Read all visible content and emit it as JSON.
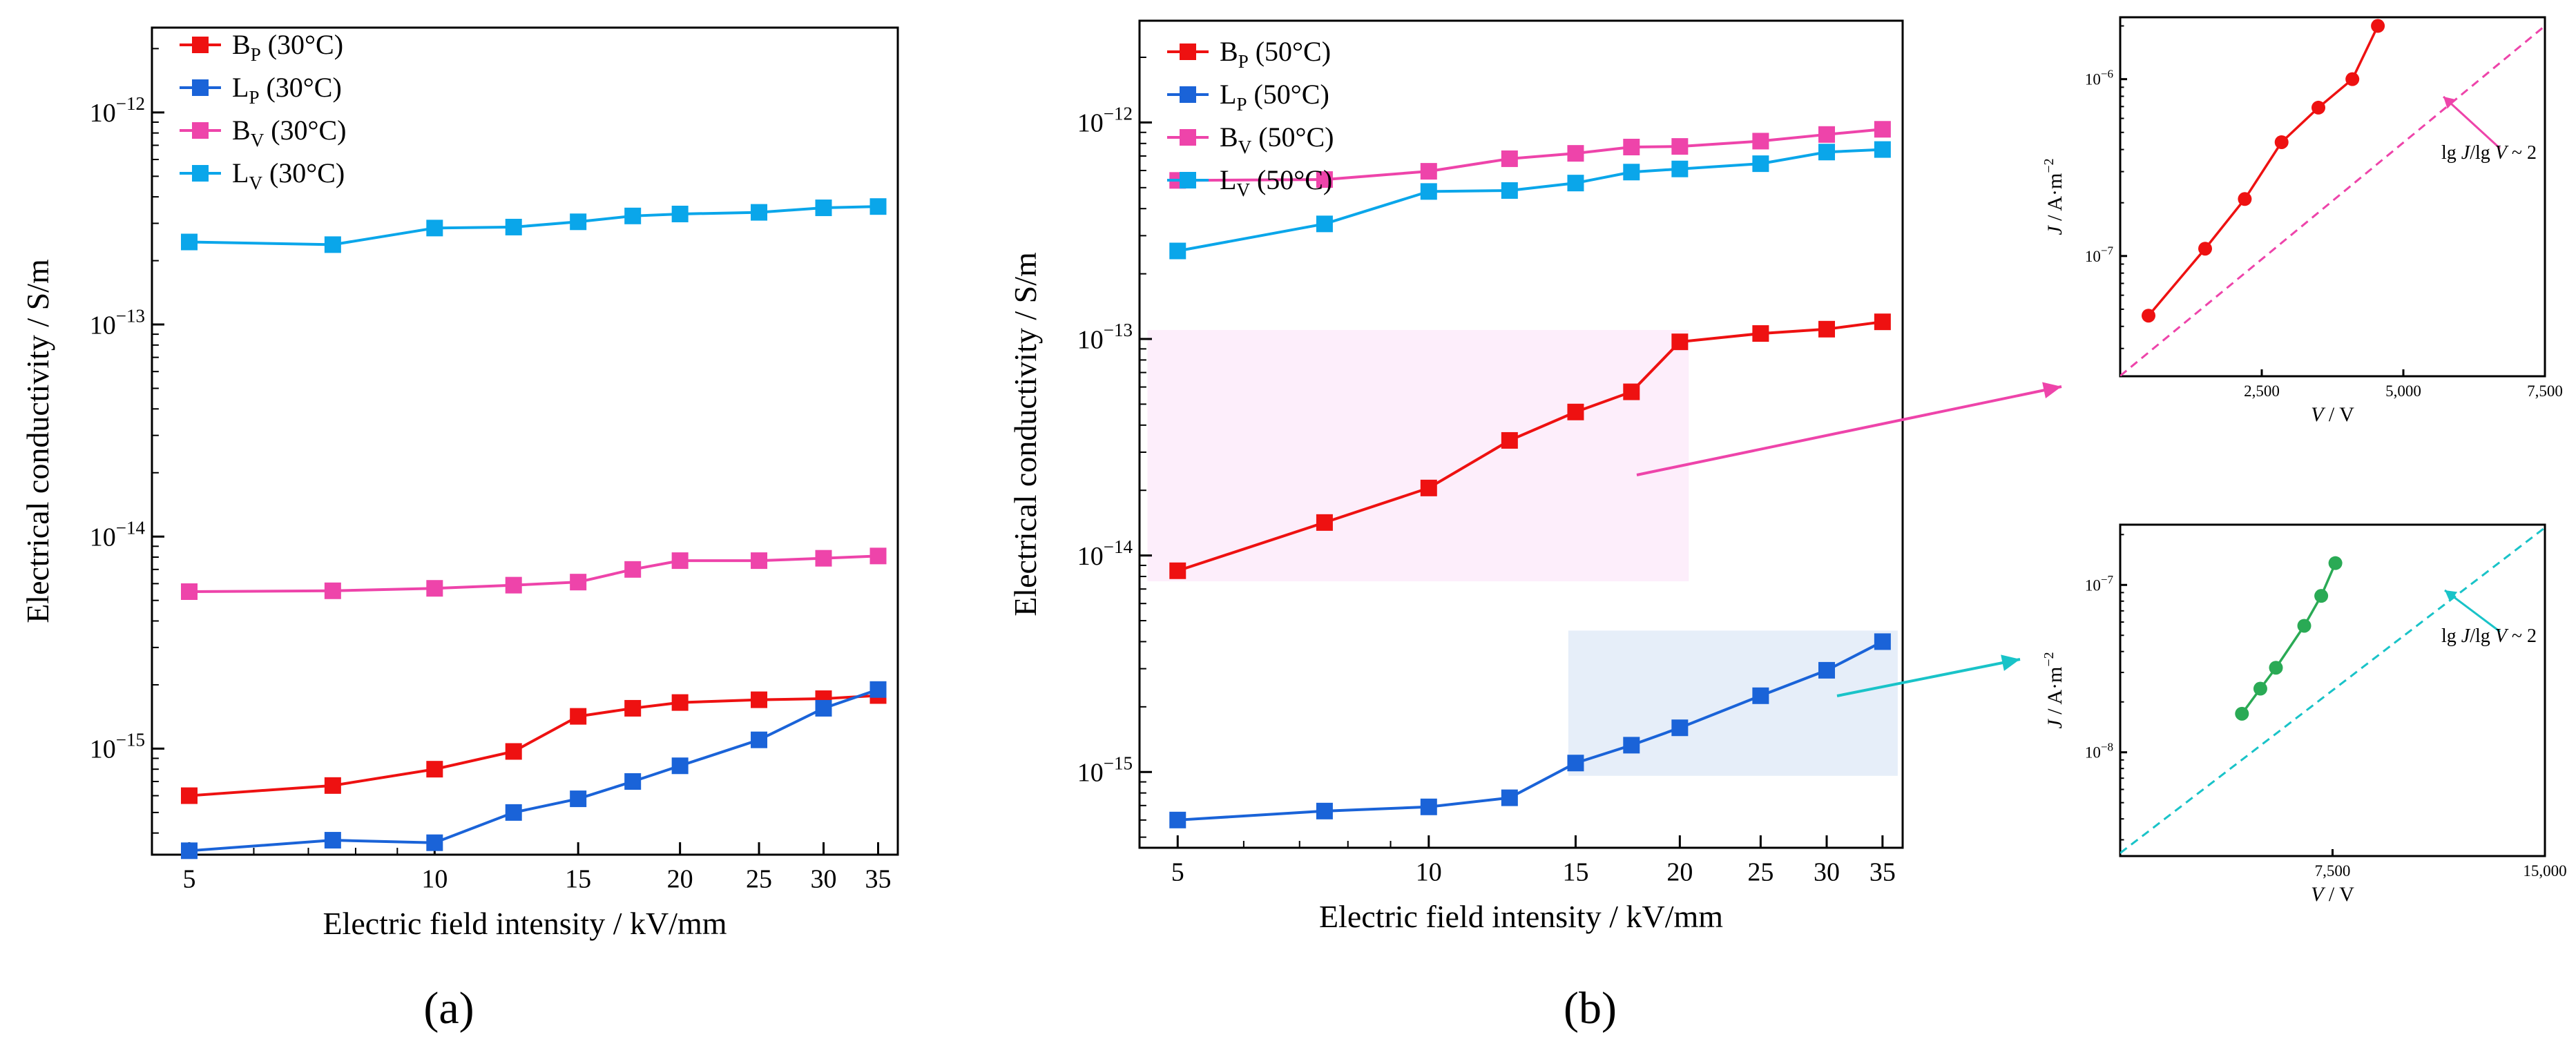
{
  "colors": {
    "red": "#ee1111",
    "blue": "#1a63d8",
    "pink": "#ee44aa",
    "cyan": "#0aa6ea",
    "green": "#2aaa55",
    "teal": "#19c3c8",
    "highlight_pink": "#fdeefb",
    "highlight_blue": "#e6eef9"
  },
  "chart_data": [
    {
      "id": "a",
      "panel_label": "(a)",
      "type": "line",
      "xscale": "log",
      "yscale": "log",
      "xlabel": "Electric field intensity / kV/mm",
      "ylabel": "Electrical conductivity / S/m",
      "xlim": [
        4.5,
        37
      ],
      "ylim_exp": [
        -15.5,
        -11.6
      ],
      "x_ticks": [
        5,
        10,
        15,
        20,
        25,
        30,
        35
      ],
      "x_tick_labels": [
        "5",
        "10",
        "15",
        "20",
        "25",
        "30",
        "35"
      ],
      "y_ticks": [
        {
          "exp": -15,
          "base": "10",
          "power": "−15"
        },
        {
          "exp": -14,
          "base": "10",
          "power": "−14"
        },
        {
          "exp": -13,
          "base": "10",
          "power": "−13"
        },
        {
          "exp": -12,
          "base": "10",
          "power": "−12"
        }
      ],
      "legend_position": "top-left",
      "x": [
        5,
        7.5,
        10,
        12.5,
        15,
        17.5,
        20,
        25,
        30,
        35
      ],
      "series": [
        {
          "name": "B",
          "sub": "P",
          "suffix": " (30°C)",
          "color": "red",
          "values": [
            6e-16,
            6.7e-16,
            8e-16,
            9.7e-16,
            1.42e-15,
            1.55e-15,
            1.65e-15,
            1.7e-15,
            1.72e-15,
            1.78e-15
          ]
        },
        {
          "name": "L",
          "sub": "P",
          "suffix": " (30°C)",
          "color": "blue",
          "values": [
            3.3e-16,
            3.7e-16,
            3.6e-16,
            5e-16,
            5.8e-16,
            7e-16,
            8.3e-16,
            1.1e-15,
            1.55e-15,
            1.9e-15
          ]
        },
        {
          "name": "B",
          "sub": "V",
          "suffix": " (30°C)",
          "color": "pink",
          "values": [
            5.5e-15,
            5.55e-15,
            5.7e-15,
            5.9e-15,
            6.1e-15,
            7e-15,
            7.7e-15,
            7.7e-15,
            7.9e-15,
            8.1e-15
          ]
        },
        {
          "name": "L",
          "sub": "V",
          "suffix": " (30°C)",
          "color": "cyan",
          "values": [
            2.45e-13,
            2.38e-13,
            2.85e-13,
            2.88e-13,
            3.05e-13,
            3.25e-13,
            3.32e-13,
            3.38e-13,
            3.55e-13,
            3.6e-13
          ]
        }
      ]
    },
    {
      "id": "b",
      "panel_label": "(b)",
      "type": "line",
      "xscale": "log",
      "yscale": "log",
      "xlabel": "Electric field intensity / kV/mm",
      "ylabel": "Electrical conductivity / S/m",
      "xlim": [
        4.5,
        37
      ],
      "ylim_exp": [
        -15.35,
        -11.53
      ],
      "x_ticks": [
        5,
        10,
        15,
        20,
        25,
        30,
        35
      ],
      "x_tick_labels": [
        "5",
        "10",
        "15",
        "20",
        "25",
        "30",
        "35"
      ],
      "y_ticks": [
        {
          "exp": -15,
          "base": "10",
          "power": "−15"
        },
        {
          "exp": -14,
          "base": "10",
          "power": "−14"
        },
        {
          "exp": -13,
          "base": "10",
          "power": "−13"
        },
        {
          "exp": -12,
          "base": "10",
          "power": "−12"
        }
      ],
      "legend_position": "top-left",
      "highlights": [
        {
          "color": "highlight_pink",
          "x_range": [
            4.6,
            20.5
          ],
          "y_range": [
            7.6e-15,
            1.1e-13
          ]
        },
        {
          "color": "highlight_blue",
          "x_range": [
            14.7,
            36.5
          ],
          "y_range": [
            9.6e-16,
            4.5e-15
          ]
        }
      ],
      "x": [
        5,
        7.5,
        10,
        12.5,
        15,
        17.5,
        20,
        25,
        30,
        35
      ],
      "series": [
        {
          "name": "B",
          "sub": "P",
          "suffix": " (50°C)",
          "color": "red",
          "values": [
            8.5e-15,
            1.42e-14,
            2.05e-14,
            3.4e-14,
            4.6e-14,
            5.7e-14,
            9.7e-14,
            1.06e-13,
            1.11e-13,
            1.2e-13
          ]
        },
        {
          "name": "L",
          "sub": "P",
          "suffix": " (50°C)",
          "color": "blue",
          "values": [
            6e-16,
            6.6e-16,
            6.9e-16,
            7.6e-16,
            1.1e-15,
            1.33e-15,
            1.6e-15,
            2.25e-15,
            2.95e-15,
            4e-15
          ]
        },
        {
          "name": "B",
          "sub": "V",
          "suffix": " (50°C)",
          "color": "pink",
          "values": [
            5.4e-13,
            5.45e-13,
            5.95e-13,
            6.8e-13,
            7.2e-13,
            7.7e-13,
            7.75e-13,
            8.2e-13,
            8.8e-13,
            9.3e-13
          ]
        },
        {
          "name": "L",
          "sub": "V",
          "suffix": " (50°C)",
          "color": "cyan",
          "values": [
            2.55e-13,
            3.4e-13,
            4.8e-13,
            4.85e-13,
            5.25e-13,
            5.9e-13,
            6.1e-13,
            6.45e-13,
            7.3e-13,
            7.5e-13
          ]
        }
      ]
    },
    {
      "id": "inset_top",
      "type": "scatter",
      "xscale": "linear",
      "yscale": "log",
      "xlabel_italic": "V",
      "xlabel_rest": " / V",
      "ylabel_italic": "J",
      "ylabel_rest": " / A·m",
      "ylabel_power": "−2",
      "xlim": [
        0,
        7500
      ],
      "ylim_exp": [
        -7.68,
        -5.65
      ],
      "x_ticks": [
        2500,
        5000,
        7500
      ],
      "x_tick_labels": [
        "2,500",
        "5,000",
        "7,500"
      ],
      "y_ticks": [
        {
          "exp": -7,
          "base": "10",
          "power": "−7"
        },
        {
          "exp": -6,
          "base": "10",
          "power": "−6"
        }
      ],
      "color": "red",
      "fit_color": "pink",
      "fit_line": {
        "x": [
          0,
          7500
        ],
        "y": [
          2.1e-08,
          2e-06
        ]
      },
      "annotation": {
        "text_pre": "lg ",
        "text_j": "J",
        "text_mid": "/lg ",
        "text_v": "V",
        "text_post": " ~ 2"
      },
      "x": [
        500,
        1500,
        2200,
        2850,
        3500,
        4100,
        4550
      ],
      "y": [
        4.6e-08,
        1.1e-07,
        2.1e-07,
        4.4e-07,
        6.9e-07,
        1e-06,
        2e-06
      ]
    },
    {
      "id": "inset_bottom",
      "type": "scatter",
      "xscale": "linear",
      "yscale": "log",
      "xlabel_italic": "V",
      "xlabel_rest": " / V",
      "ylabel_italic": "J",
      "ylabel_rest": " / A·m",
      "ylabel_power": "−2",
      "xlim": [
        0,
        15000
      ],
      "ylim_exp": [
        -8.62,
        -6.64
      ],
      "x_ticks": [
        7500,
        15000
      ],
      "x_tick_labels": [
        "7,500",
        "15,000"
      ],
      "y_ticks": [
        {
          "exp": -8,
          "base": "10",
          "power": "−8"
        },
        {
          "exp": -7,
          "base": "10",
          "power": "−7"
        }
      ],
      "color": "green",
      "fit_color": "teal",
      "fit_line": {
        "x": [
          0,
          15000
        ],
        "y": [
          2.5e-09,
          2.2e-07
        ]
      },
      "annotation": {
        "text_pre": "lg ",
        "text_j": "J",
        "text_mid": "/lg ",
        "text_v": "V",
        "text_post": " ~ 2"
      },
      "x": [
        4300,
        4950,
        5500,
        6500,
        7100,
        7600
      ],
      "y": [
        1.7e-08,
        2.4e-08,
        3.2e-08,
        5.7e-08,
        8.6e-08,
        1.35e-07
      ]
    }
  ]
}
